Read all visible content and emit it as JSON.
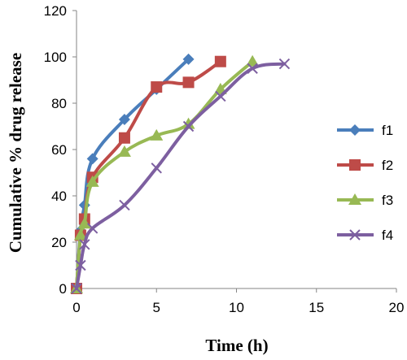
{
  "chart_data": {
    "type": "line",
    "title": "",
    "xlabel": "Time (h)",
    "ylabel": "Cumulative % drug release",
    "xlim": [
      0,
      20
    ],
    "ylim": [
      0,
      120
    ],
    "xticks": [
      0,
      5,
      10,
      15,
      20
    ],
    "yticks": [
      0,
      20,
      40,
      60,
      80,
      100,
      120
    ],
    "grid": false,
    "legend_position": "right",
    "series": [
      {
        "name": "f1",
        "color": "#4A7EBB",
        "marker": "diamond",
        "x": [
          0,
          0.25,
          0.5,
          1,
          3,
          5,
          7
        ],
        "y": [
          0,
          25,
          36,
          56,
          73,
          86,
          99
        ]
      },
      {
        "name": "f2",
        "color": "#BE4B48",
        "marker": "square",
        "x": [
          0,
          0.25,
          0.5,
          1,
          3,
          5,
          7,
          9
        ],
        "y": [
          0,
          23,
          30,
          48,
          65,
          87,
          89,
          98
        ]
      },
      {
        "name": "f3",
        "color": "#98B954",
        "marker": "triangle",
        "x": [
          0,
          0.25,
          0.5,
          1,
          3,
          5,
          7,
          9,
          11
        ],
        "y": [
          0,
          23,
          28,
          46,
          59,
          66,
          71,
          86,
          98
        ]
      },
      {
        "name": "f4",
        "color": "#7D5FA0",
        "marker": "x",
        "x": [
          0,
          0.25,
          0.5,
          1,
          3,
          5,
          7,
          9,
          11,
          13
        ],
        "y": [
          0,
          10,
          19,
          26,
          36,
          52,
          70,
          83,
          95,
          97
        ]
      }
    ]
  }
}
